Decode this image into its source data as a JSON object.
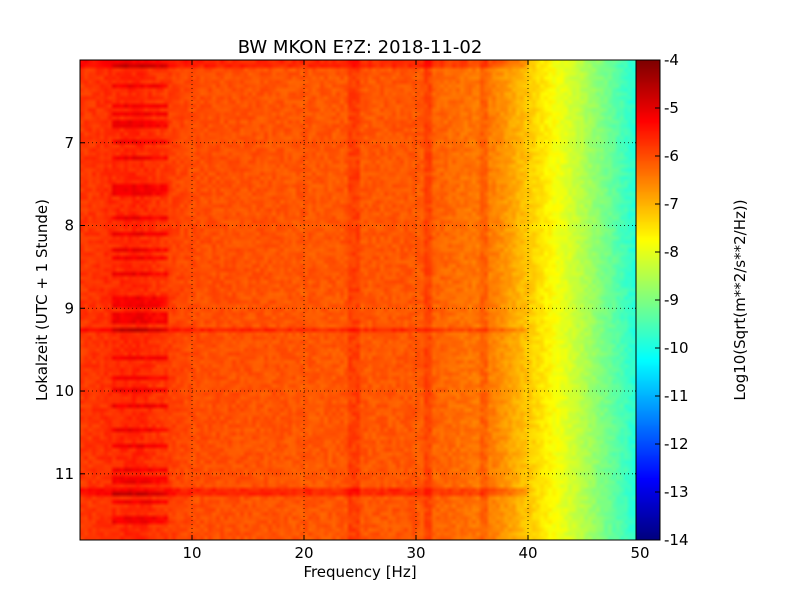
{
  "chart_data": {
    "type": "heatmap",
    "title": "BW MKON E?Z: 2018-11-02",
    "xlabel": "Frequency [Hz]",
    "ylabel": "Lokalzeit (UTC + 1 Stunde)",
    "xlim": [
      0,
      50
    ],
    "ylim": [
      6.0,
      11.8
    ],
    "y_inverted": true,
    "x_ticks": [
      "10",
      "20",
      "30",
      "40",
      "50"
    ],
    "x_tick_values": [
      10,
      20,
      30,
      40,
      50
    ],
    "y_ticks": [
      "7",
      "8",
      "9",
      "10",
      "11"
    ],
    "y_tick_values": [
      7,
      8,
      9,
      10,
      11
    ],
    "grid": true,
    "colorbar": {
      "label": "Log10(Sqrt(m**2/s**2/Hz))",
      "colormap": "jet",
      "min": -14,
      "max": -4,
      "ticks": [
        "-4",
        "-5",
        "-6",
        "-7",
        "-8",
        "-9",
        "-10",
        "-11",
        "-12",
        "-13",
        "-14"
      ],
      "tick_values": [
        -4,
        -5,
        -6,
        -7,
        -8,
        -9,
        -10,
        -11,
        -12,
        -13,
        -14
      ]
    },
    "spectral_profile": {
      "frequency": [
        0,
        5,
        10,
        20,
        30,
        37,
        40,
        42,
        44,
        46,
        48,
        50
      ],
      "value": [
        -5.8,
        -5.6,
        -6.0,
        -6.1,
        -6.1,
        -6.5,
        -7.2,
        -7.7,
        -8.2,
        -8.8,
        -9.4,
        -10.0
      ]
    },
    "annotations": {
      "broadband_bands_hz": [
        [
          3,
          8
        ]
      ],
      "line_frequencies_hz": [
        24.5,
        31,
        36
      ],
      "strong_event_times": [
        6.05,
        9.28,
        11.22
      ]
    }
  }
}
